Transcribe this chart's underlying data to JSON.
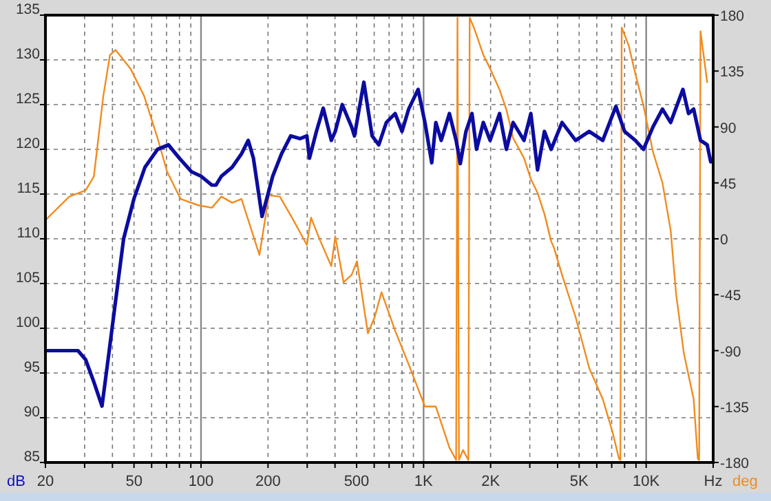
{
  "chart_data": {
    "type": "line",
    "ylabel": "dB",
    "y2label": "deg",
    "log": "x",
    "grid": true,
    "line_style": "solid",
    "xlim": [
      20,
      20000
    ],
    "xticks": [
      20,
      {
        "value": 30,
        "label": null
      },
      {
        "value": 40,
        "label": null
      },
      50,
      {
        "value": 60,
        "label": null
      },
      {
        "value": 70,
        "label": null
      },
      {
        "value": 80,
        "label": null
      },
      {
        "value": 90,
        "label": null
      },
      100,
      200,
      {
        "value": 300,
        "label": null
      },
      {
        "value": 400,
        "label": null
      },
      500,
      {
        "value": 600,
        "label": null
      },
      {
        "value": 700,
        "label": null
      },
      {
        "value": 800,
        "label": null
      },
      {
        "value": 900,
        "label": null
      },
      {
        "value": 1000,
        "label": "1K"
      },
      {
        "value": 2000,
        "label": "2K"
      },
      {
        "value": 3000,
        "label": null
      },
      {
        "value": 4000,
        "label": null
      },
      {
        "value": 5000,
        "label": "5K"
      },
      {
        "value": 6000,
        "label": null
      },
      {
        "value": 7000,
        "label": null
      },
      {
        "value": 8000,
        "label": null
      },
      {
        "value": 9000,
        "label": null
      },
      {
        "value": 10000,
        "label": "10K"
      },
      {
        "value": 20000,
        "label": "Hz"
      }
    ],
    "ylim": [
      85,
      135
    ],
    "yticks": [
      85,
      90,
      95,
      100,
      105,
      110,
      115,
      120,
      125,
      130,
      135
    ],
    "y2lim": [
      -180,
      180
    ],
    "y2ticks": [
      -180,
      -135,
      -90,
      -45,
      0,
      45,
      90,
      135,
      180
    ],
    "series": [
      {
        "color": "#f08c1e",
        "axis": "y2",
        "x": [
          20,
          25.6,
          30.3,
          33,
          36.4,
          39,
          41.3,
          48.2,
          55.5,
          63.8,
          70.4,
          81,
          97.2,
          111.9,
          123.5,
          138,
          152,
          183,
          202,
          226,
          260,
          299,
          312,
          344,
          385,
          401,
          437,
          475,
          502,
          562,
          603,
          647,
          745,
          857,
          1014,
          1135,
          1306,
          1400,
          1420,
          1442,
          1503,
          1589,
          1611,
          1682,
          1729,
          1855,
          1990,
          2194,
          2355,
          2525,
          2825,
          3033,
          3251,
          3490,
          3742,
          3848,
          4188,
          4819,
          5546,
          6383,
          7048,
          7551,
          7656,
          7763,
          8333,
          8937,
          9727,
          10726,
          11836,
          12880,
          13622,
          14760,
          16340,
          17060,
          17300,
          17540,
          18800
        ],
        "values": [
          15,
          34,
          39,
          50,
          115,
          148,
          152,
          137,
          115,
          81,
          54,
          32,
          27,
          25,
          34,
          29,
          32,
          -13,
          35,
          34,
          15,
          -5,
          17,
          -2,
          -22,
          2,
          -35,
          -29,
          -18,
          -76,
          -63,
          -43,
          -74,
          -101,
          -135,
          -135,
          -168,
          -178,
          178,
          -178,
          -170,
          -178,
          178,
          170,
          164,
          148,
          137,
          120,
          104,
          81,
          65,
          48,
          37,
          20,
          -2,
          -7,
          -29,
          -63,
          -104,
          -129,
          -155,
          -177,
          -178,
          170,
          156,
          133,
          107,
          70,
          45,
          7,
          -44,
          -92,
          -129,
          -177,
          -178,
          167,
          126
        ]
      },
      {
        "color": "#0c0ca0",
        "axis": "y",
        "x": [
          20,
          25.6,
          28,
          30.3,
          33,
          35.9,
          38,
          41.3,
          44.9,
          50,
          56,
          63.8,
          71.4,
          80,
          90.6,
          100,
          111.9,
          116.7,
          123.5,
          138,
          152,
          163,
          172,
          188,
          210,
          230,
          253,
          279,
          299,
          307,
          330,
          354,
          385,
          401,
          431,
          475,
          489,
          539,
          587,
          629,
          680,
          745,
          800,
          857,
          945,
          1014,
          1088,
          1135,
          1200,
          1306,
          1400,
          1462,
          1550,
          1650,
          1729,
          1855,
          1990,
          2194,
          2355,
          2525,
          2825,
          3033,
          3251,
          3490,
          3742,
          4188,
          4819,
          5546,
          6383,
          7308,
          8000,
          8937,
          9727,
          10726,
          11836,
          12880,
          14622,
          15500,
          16340,
          17540,
          18800,
          19500
        ],
        "values": [
          97.5,
          97.5,
          97.5,
          96.5,
          94,
          91.3,
          96,
          103,
          110,
          114.5,
          118,
          120,
          120.5,
          119,
          117.5,
          117,
          116,
          116,
          117,
          118,
          119.5,
          121,
          119,
          112.5,
          117,
          119.5,
          121.5,
          121.2,
          121.5,
          119,
          122,
          124.6,
          121,
          122,
          125,
          122.5,
          121.5,
          127.5,
          121.5,
          120.5,
          123,
          124,
          122,
          124.5,
          126.7,
          123,
          118.5,
          123,
          121,
          124,
          121,
          118.4,
          122,
          124,
          120,
          123,
          121,
          124,
          120,
          123,
          121,
          124,
          117.7,
          122,
          120,
          123,
          121,
          122,
          121,
          124.8,
          122,
          121,
          120,
          122.5,
          124.5,
          123,
          126.7,
          124,
          124.5,
          121,
          120.5,
          118.6
        ]
      }
    ]
  }
}
